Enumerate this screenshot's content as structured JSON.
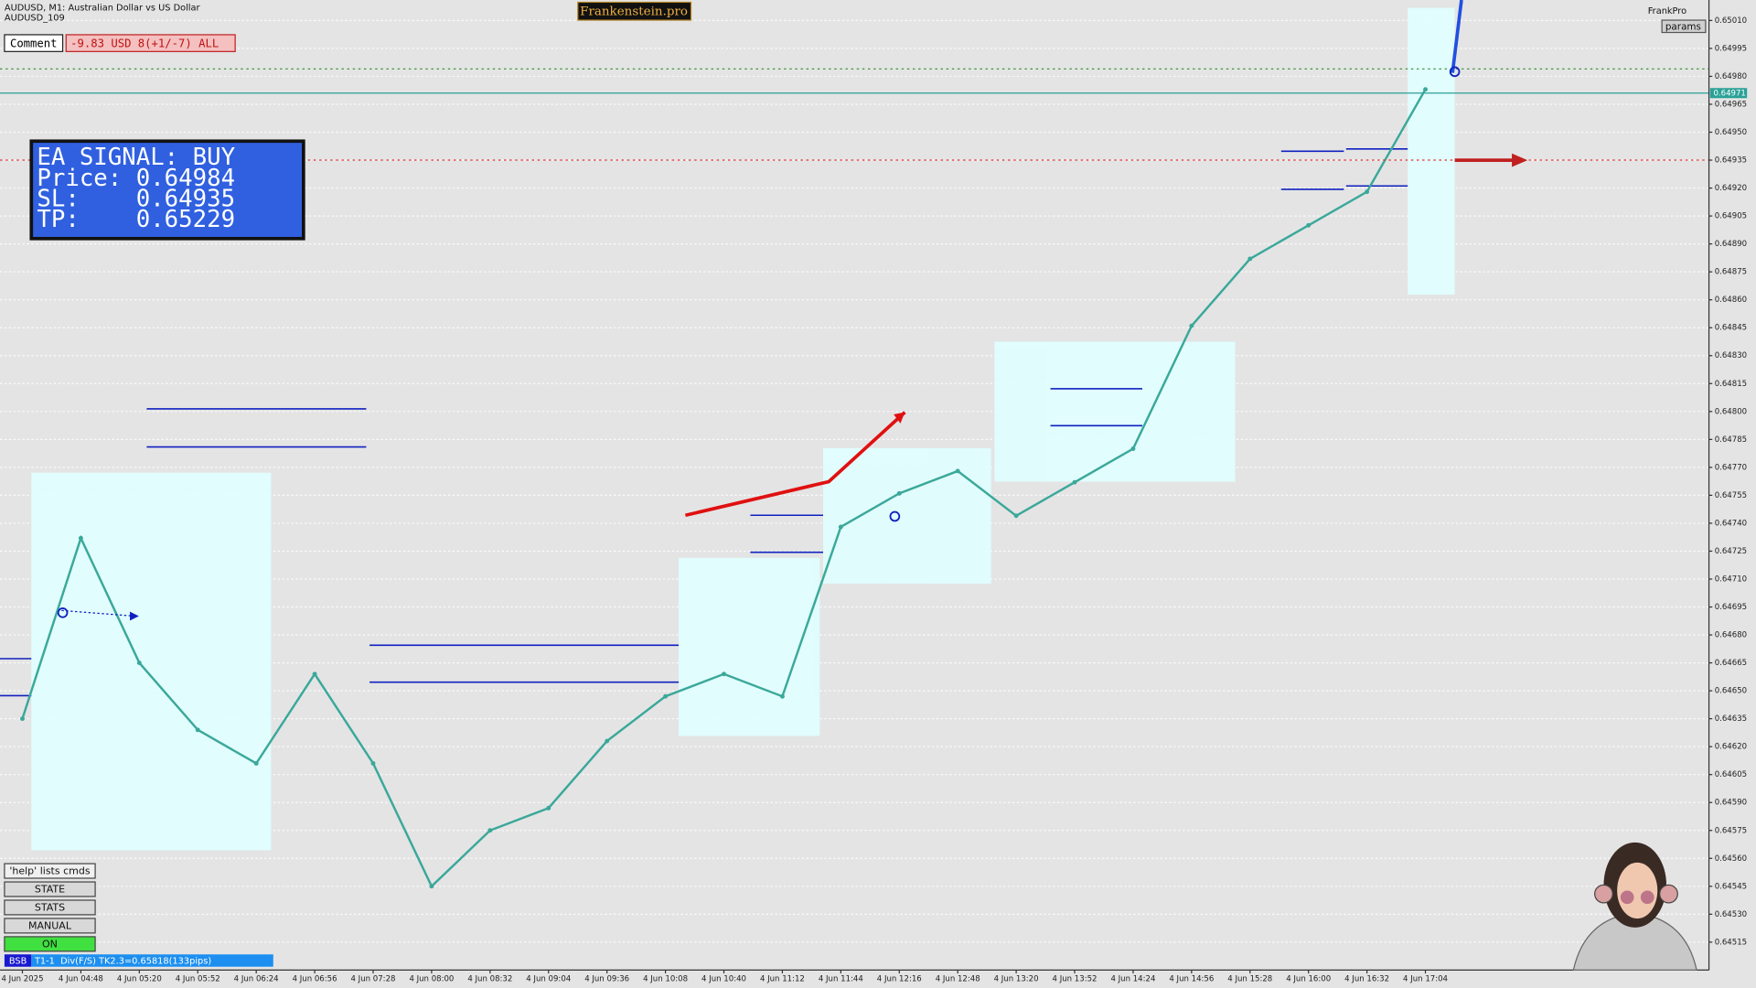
{
  "header": {
    "symbol": "AUDUSD, M1:  Australian Dollar vs US Dollar",
    "account": "AUDUSD_109",
    "brand": "Frankenstein.pro",
    "user": "FrankPro",
    "params": "params"
  },
  "comment": {
    "label": "Comment",
    "value": "-9.83 USD 8(+1/-7) ALL"
  },
  "signal": {
    "lines": [
      "EA SIGNAL: BUY",
      "Price: 0.64984",
      "SL:    0.64935",
      "TP:    0.65229"
    ]
  },
  "buttons": [
    "'help' lists cmds",
    "STATE",
    "STATS",
    "MANUAL",
    "ON"
  ],
  "status": {
    "tag": "BSB",
    "text": "T1-1  Div(F/S) TK2.3=0.65818(133pips)"
  },
  "chart_data": {
    "type": "line",
    "categories": [
      "4 Jun 2025",
      "4 Jun 04:48",
      "4 Jun 05:20",
      "4 Jun 05:52",
      "4 Jun 06:24",
      "4 Jun 06:56",
      "4 Jun 07:28",
      "4 Jun 08:00",
      "4 Jun 08:32",
      "4 Jun 09:04",
      "4 Jun 09:36",
      "4 Jun 10:08",
      "4 Jun 10:40",
      "4 Jun 11:12",
      "4 Jun 11:44",
      "4 Jun 12:16",
      "4 Jun 12:48",
      "4 Jun 13:20",
      "4 Jun 13:52",
      "4 Jun 14:24",
      "4 Jun 14:56",
      "4 Jun 15:28",
      "4 Jun 16:00",
      "4 Jun 16:32",
      "4 Jun 17:04"
    ],
    "values": [
      0.64635,
      0.64732,
      0.64665,
      0.64629,
      0.64611,
      0.64659,
      0.64611,
      0.64545,
      0.64575,
      0.64587,
      0.64623,
      0.64647,
      0.64659,
      0.64647,
      0.64738,
      0.64756,
      0.64768,
      0.64744,
      0.64762,
      0.6478,
      0.64846,
      0.64882,
      0.649,
      0.64918,
      0.64973
    ],
    "color": "#3aa89a",
    "ylim": [
      0.645,
      0.65021
    ],
    "yticks": [
      {
        "value": 0.6501,
        "label": "0.65010"
      },
      {
        "value": 0.64995,
        "label": "0.64995"
      },
      {
        "value": 0.6498,
        "label": "0.64980"
      },
      {
        "value": 0.64965,
        "label": "0.64965"
      },
      {
        "value": 0.6495,
        "label": "0.64950"
      },
      {
        "value": 0.64935,
        "label": "0.64935"
      },
      {
        "value": 0.6492,
        "label": "0.64920"
      },
      {
        "value": 0.64905,
        "label": "0.64905"
      },
      {
        "value": 0.6489,
        "label": "0.64890"
      },
      {
        "value": 0.64875,
        "label": "0.64875"
      },
      {
        "value": 0.6486,
        "label": "0.64860"
      },
      {
        "value": 0.64845,
        "label": "0.64845"
      },
      {
        "value": 0.6483,
        "label": "0.64830"
      },
      {
        "value": 0.64815,
        "label": "0.64815"
      },
      {
        "value": 0.648,
        "label": "0.64800"
      },
      {
        "value": 0.64785,
        "label": "0.64785"
      },
      {
        "value": 0.6477,
        "label": "0.64770"
      },
      {
        "value": 0.64755,
        "label": "0.64755"
      },
      {
        "value": 0.6474,
        "label": "0.64740"
      },
      {
        "value": 0.64725,
        "label": "0.64725"
      },
      {
        "value": 0.6471,
        "label": "0.64710"
      },
      {
        "value": 0.64695,
        "label": "0.64695"
      },
      {
        "value": 0.6468,
        "label": "0.64680"
      },
      {
        "value": 0.64665,
        "label": "0.64665"
      },
      {
        "value": 0.6465,
        "label": "0.64650"
      },
      {
        "value": 0.64635,
        "label": "0.64635"
      },
      {
        "value": 0.6462,
        "label": "0.64620"
      },
      {
        "value": 0.64605,
        "label": "0.64605"
      },
      {
        "value": 0.6459,
        "label": "0.64590"
      },
      {
        "value": 0.64575,
        "label": "0.64575"
      },
      {
        "value": 0.6456,
        "label": "0.64560"
      },
      {
        "value": 0.64545,
        "label": "0.64545"
      },
      {
        "value": 0.6453,
        "label": "0.64530"
      },
      {
        "value": 0.64515,
        "label": "0.64515"
      }
    ],
    "levels": [
      {
        "value": 0.64984,
        "color": "#2e8b2e"
      },
      {
        "value": 0.64971,
        "color": "#2aa198",
        "label": "0.64971"
      },
      {
        "value": 0.64935,
        "color": "#e03030"
      }
    ],
    "grid": true
  }
}
